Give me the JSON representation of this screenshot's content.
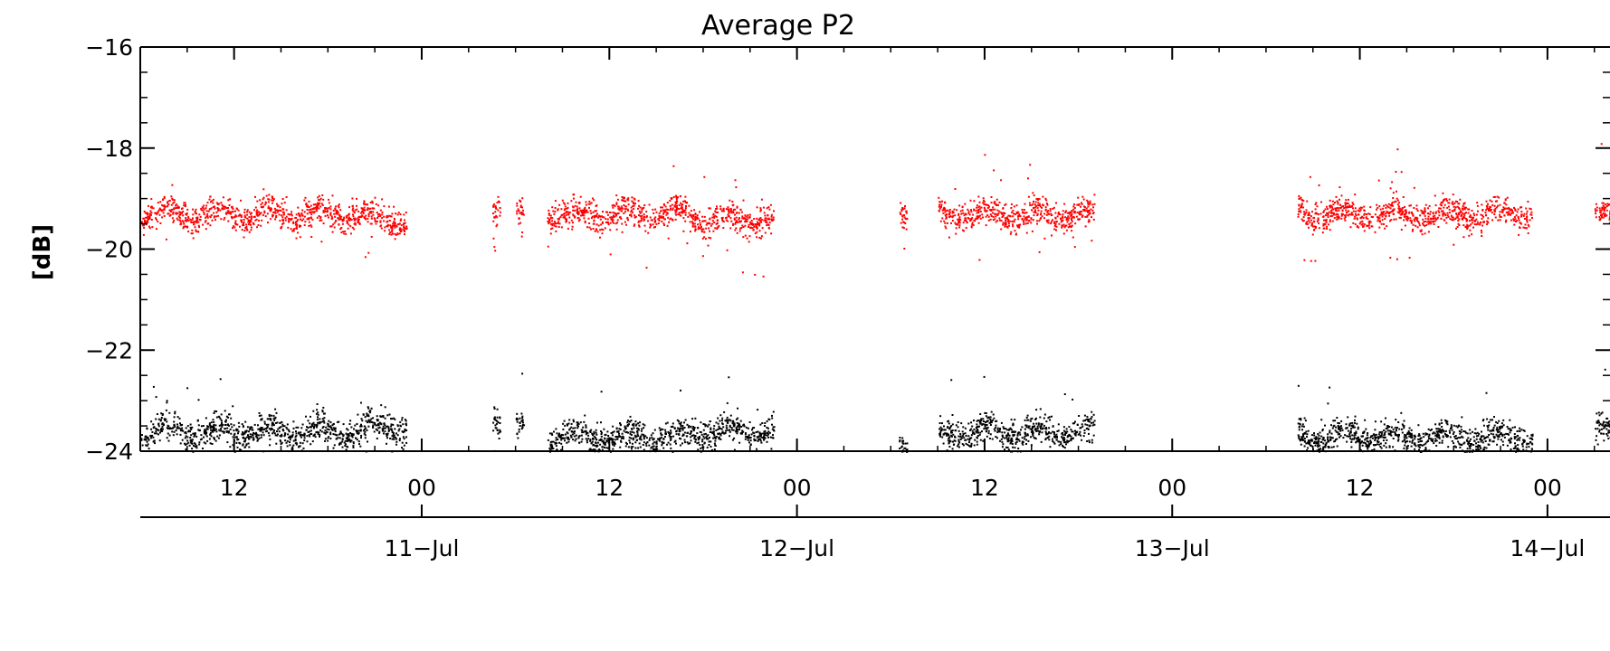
{
  "chart_data": {
    "type": "scatter",
    "title": "Average P2",
    "xlabel": "",
    "ylabel": "[dB]",
    "xlim": [
      "2013-07-10T06:00",
      "2013-07-14T04:00"
    ],
    "ylim": [
      -24,
      -16
    ],
    "y_ticks": [
      "-16",
      "-18",
      "-20",
      "-22",
      "-24"
    ],
    "x_hour_ticks": [
      "12",
      "00",
      "12",
      "00",
      "12",
      "00",
      "12",
      "00"
    ],
    "x_date_ticks": [
      "11-Jul",
      "12-Jul",
      "13-Jul",
      "14-Jul"
    ],
    "grid": false,
    "series": [
      {
        "color": "#ff0000",
        "center": -19.3,
        "spread": 0.35,
        "segments": [
          [
            "2013-07-10T06:00",
            "2013-07-10T20:30",
            -19.3
          ],
          [
            "2013-07-10T20:30",
            "2013-07-10T23:00",
            -19.4
          ],
          [
            "2013-07-11T04:30",
            "2013-07-11T05:00",
            -19.1
          ],
          [
            "2013-07-11T06:00",
            "2013-07-11T06:30",
            -19.3
          ],
          [
            "2013-07-11T08:00",
            "2013-07-11T17:00",
            -19.3
          ],
          [
            "2013-07-11T17:00",
            "2013-07-11T22:30",
            -19.4
          ],
          [
            "2013-07-12T06:30",
            "2013-07-12T07:00",
            -19.2
          ],
          [
            "2013-07-12T09:00",
            "2013-07-12T19:00",
            -19.3
          ],
          [
            "2013-07-13T08:00",
            "2013-07-13T23:00",
            -19.3
          ],
          [
            "2013-07-14T03:00",
            "2013-07-14T04:00",
            -19.3
          ]
        ]
      },
      {
        "color": "#000000",
        "center": -23.6,
        "spread": 0.35,
        "segments": [
          [
            "2013-07-10T06:00",
            "2013-07-10T20:30",
            -23.6
          ],
          [
            "2013-07-10T20:30",
            "2013-07-10T23:00",
            -23.5
          ],
          [
            "2013-07-11T04:30",
            "2013-07-11T05:00",
            -23.3
          ],
          [
            "2013-07-11T06:00",
            "2013-07-11T06:30",
            -23.5
          ],
          [
            "2013-07-11T08:00",
            "2013-07-11T17:00",
            -23.7
          ],
          [
            "2013-07-11T17:00",
            "2013-07-11T22:30",
            -23.6
          ],
          [
            "2013-07-12T06:30",
            "2013-07-12T07:00",
            -23.8
          ],
          [
            "2013-07-12T09:00",
            "2013-07-12T19:00",
            -23.6
          ],
          [
            "2013-07-13T08:00",
            "2013-07-13T23:00",
            -23.7
          ],
          [
            "2013-07-14T03:00",
            "2013-07-14T04:00",
            -23.6
          ]
        ]
      }
    ]
  }
}
